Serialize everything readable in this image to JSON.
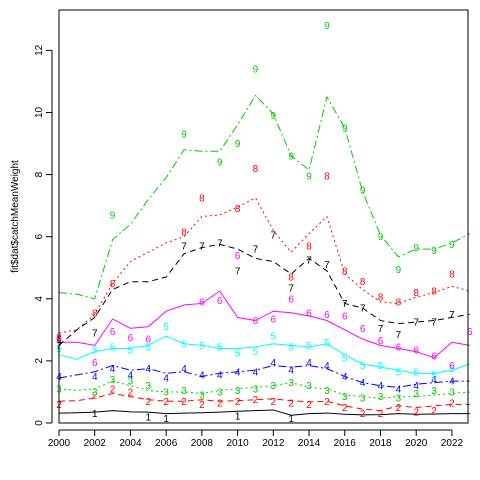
{
  "chart_data": {
    "type": "line",
    "title": "",
    "xlabel": "",
    "ylabel": "fit$dat$catchMeanWeight",
    "xlim": [
      2000,
      2022.9
    ],
    "ylim": [
      0,
      13.3
    ],
    "x_ticks": [
      2000,
      2002,
      2004,
      2006,
      2008,
      2010,
      2012,
      2014,
      2016,
      2018,
      2020,
      2022
    ],
    "y_ticks": [
      0,
      2,
      4,
      6,
      8,
      10,
      12
    ],
    "grid": false,
    "legend": "none",
    "x": [
      2000,
      2001,
      2002,
      2003,
      2004,
      2005,
      2006,
      2007,
      2008,
      2009,
      2010,
      2011,
      2012,
      2013,
      2014,
      2015,
      2016,
      2017,
      2018,
      2019,
      2020,
      2021,
      2022,
      2023
    ],
    "series": [
      {
        "marker": "1",
        "color": "#000000",
        "dash": "",
        "fitted": [
          0.32,
          0.33,
          0.35,
          0.4,
          0.36,
          0.35,
          0.3,
          0.32,
          0.33,
          0.35,
          0.38,
          0.4,
          0.42,
          0.25,
          0.3,
          0.32,
          0.28,
          0.26,
          0.27,
          0.3,
          0.28,
          0.29,
          0.3,
          0.3
        ],
        "obs": [
          {
            "x": 2002,
            "y": 0.3
          },
          {
            "x": 2005,
            "y": 0.2
          },
          {
            "x": 2006,
            "y": 0.15
          },
          {
            "x": 2010,
            "y": 0.22
          },
          {
            "x": 2013,
            "y": 0.15
          }
        ]
      },
      {
        "marker": "2",
        "color": "#ff0000",
        "dash": "6,4",
        "fitted": [
          0.7,
          0.72,
          0.8,
          0.95,
          0.85,
          0.75,
          0.7,
          0.7,
          0.75,
          0.7,
          0.72,
          0.75,
          0.78,
          0.72,
          0.68,
          0.7,
          0.55,
          0.45,
          0.4,
          0.55,
          0.5,
          0.55,
          0.6,
          0.6
        ],
        "obs": [
          {
            "x": 2000,
            "y": 0.6
          },
          {
            "x": 2002,
            "y": 0.9
          },
          {
            "x": 2003,
            "y": 1.1
          },
          {
            "x": 2004,
            "y": 1.0
          },
          {
            "x": 2005,
            "y": 0.7
          },
          {
            "x": 2006,
            "y": 0.7
          },
          {
            "x": 2007,
            "y": 0.7
          },
          {
            "x": 2008,
            "y": 0.6
          },
          {
            "x": 2009,
            "y": 0.65
          },
          {
            "x": 2010,
            "y": 0.7
          },
          {
            "x": 2011,
            "y": 0.75
          },
          {
            "x": 2012,
            "y": 0.7
          },
          {
            "x": 2013,
            "y": 0.65
          },
          {
            "x": 2014,
            "y": 0.6
          },
          {
            "x": 2015,
            "y": 0.7
          },
          {
            "x": 2016,
            "y": 0.5
          },
          {
            "x": 2017,
            "y": 0.3
          },
          {
            "x": 2018,
            "y": 0.3
          },
          {
            "x": 2019,
            "y": 0.5
          },
          {
            "x": 2020,
            "y": 0.35
          },
          {
            "x": 2021,
            "y": 0.4
          },
          {
            "x": 2022,
            "y": 0.65
          }
        ]
      },
      {
        "marker": "3",
        "color": "#00cd00",
        "dash": "2,3",
        "fitted": [
          1.1,
          1.05,
          1.1,
          1.35,
          1.2,
          1.05,
          1.0,
          1.0,
          0.95,
          1.05,
          1.1,
          1.15,
          1.2,
          1.3,
          1.15,
          1.1,
          0.9,
          0.85,
          0.8,
          0.85,
          0.85,
          0.9,
          0.95,
          1.0
        ],
        "obs": [
          {
            "x": 2000,
            "y": 1.1
          },
          {
            "x": 2002,
            "y": 1.0
          },
          {
            "x": 2003,
            "y": 1.4
          },
          {
            "x": 2004,
            "y": 1.35
          },
          {
            "x": 2005,
            "y": 1.2
          },
          {
            "x": 2006,
            "y": 1.0
          },
          {
            "x": 2007,
            "y": 1.05
          },
          {
            "x": 2008,
            "y": 0.9
          },
          {
            "x": 2009,
            "y": 1.0
          },
          {
            "x": 2010,
            "y": 1.05
          },
          {
            "x": 2011,
            "y": 1.1
          },
          {
            "x": 2012,
            "y": 1.2
          },
          {
            "x": 2013,
            "y": 1.3
          },
          {
            "x": 2014,
            "y": 1.2
          },
          {
            "x": 2015,
            "y": 1.05
          },
          {
            "x": 2016,
            "y": 0.85
          },
          {
            "x": 2017,
            "y": 0.8
          },
          {
            "x": 2018,
            "y": 0.85
          },
          {
            "x": 2019,
            "y": 0.8
          },
          {
            "x": 2020,
            "y": 0.95
          },
          {
            "x": 2021,
            "y": 1.05
          },
          {
            "x": 2022,
            "y": 1.0
          }
        ]
      },
      {
        "marker": "4",
        "color": "#0000ff",
        "dash": "8,3,2,3",
        "fitted": [
          1.45,
          1.55,
          1.65,
          1.85,
          1.7,
          1.75,
          1.6,
          1.65,
          1.5,
          1.6,
          1.65,
          1.7,
          1.85,
          1.8,
          1.85,
          1.75,
          1.5,
          1.3,
          1.2,
          1.15,
          1.25,
          1.3,
          1.35,
          1.35
        ],
        "obs": [
          {
            "x": 2000,
            "y": 1.5
          },
          {
            "x": 2002,
            "y": 1.5
          },
          {
            "x": 2003,
            "y": 1.75
          },
          {
            "x": 2004,
            "y": 1.55
          },
          {
            "x": 2005,
            "y": 1.75
          },
          {
            "x": 2006,
            "y": 1.45
          },
          {
            "x": 2007,
            "y": 1.75
          },
          {
            "x": 2008,
            "y": 1.55
          },
          {
            "x": 2009,
            "y": 1.55
          },
          {
            "x": 2010,
            "y": 1.65
          },
          {
            "x": 2011,
            "y": 1.65
          },
          {
            "x": 2012,
            "y": 1.95
          },
          {
            "x": 2013,
            "y": 1.7
          },
          {
            "x": 2014,
            "y": 1.95
          },
          {
            "x": 2015,
            "y": 1.85
          },
          {
            "x": 2016,
            "y": 1.5
          },
          {
            "x": 2017,
            "y": 1.3
          },
          {
            "x": 2018,
            "y": 1.2
          },
          {
            "x": 2019,
            "y": 1.1
          },
          {
            "x": 2020,
            "y": 1.2
          },
          {
            "x": 2021,
            "y": 1.4
          },
          {
            "x": 2022,
            "y": 1.35
          }
        ]
      },
      {
        "marker": "5",
        "color": "#00ffff",
        "dash": "",
        "fitted": [
          2.2,
          2.05,
          2.3,
          2.4,
          2.4,
          2.5,
          2.8,
          2.55,
          2.5,
          2.4,
          2.4,
          2.45,
          2.55,
          2.5,
          2.45,
          2.55,
          2.2,
          1.9,
          1.8,
          1.7,
          1.6,
          1.6,
          1.7,
          1.9
        ],
        "obs": [
          {
            "x": 2000,
            "y": 2.4
          },
          {
            "x": 2002,
            "y": 2.35
          },
          {
            "x": 2003,
            "y": 2.45
          },
          {
            "x": 2004,
            "y": 2.35
          },
          {
            "x": 2005,
            "y": 2.45
          },
          {
            "x": 2006,
            "y": 3.1
          },
          {
            "x": 2007,
            "y": 2.55
          },
          {
            "x": 2008,
            "y": 2.5
          },
          {
            "x": 2009,
            "y": 2.45
          },
          {
            "x": 2010,
            "y": 2.25
          },
          {
            "x": 2011,
            "y": 2.3
          },
          {
            "x": 2012,
            "y": 2.8
          },
          {
            "x": 2013,
            "y": 2.45
          },
          {
            "x": 2014,
            "y": 2.5
          },
          {
            "x": 2015,
            "y": 2.6
          },
          {
            "x": 2016,
            "y": 2.1
          },
          {
            "x": 2017,
            "y": 1.85
          },
          {
            "x": 2018,
            "y": 1.85
          },
          {
            "x": 2019,
            "y": 1.65
          },
          {
            "x": 2020,
            "y": 1.65
          },
          {
            "x": 2021,
            "y": 1.55
          },
          {
            "x": 2022,
            "y": 1.75
          }
        ]
      },
      {
        "marker": "6",
        "color": "#ff00ff",
        "dash": "",
        "fitted": [
          2.6,
          2.6,
          2.5,
          3.35,
          3.05,
          3.1,
          3.6,
          3.8,
          3.85,
          4.25,
          3.4,
          3.3,
          3.6,
          3.55,
          3.45,
          3.3,
          3.0,
          2.7,
          2.5,
          2.4,
          2.3,
          2.1,
          2.6,
          2.5
        ],
        "obs": [
          {
            "x": 2000,
            "y": 2.7
          },
          {
            "x": 2002,
            "y": 1.95
          },
          {
            "x": 2003,
            "y": 2.95
          },
          {
            "x": 2004,
            "y": 2.75
          },
          {
            "x": 2005,
            "y": 2.7
          },
          {
            "x": 2008,
            "y": 3.9
          },
          {
            "x": 2009,
            "y": 3.95
          },
          {
            "x": 2010,
            "y": 5.4
          },
          {
            "x": 2011,
            "y": 3.3
          },
          {
            "x": 2012,
            "y": 3.35
          },
          {
            "x": 2013,
            "y": 4.0
          },
          {
            "x": 2014,
            "y": 3.55
          },
          {
            "x": 2015,
            "y": 3.5
          },
          {
            "x": 2016,
            "y": 3.45
          },
          {
            "x": 2017,
            "y": 3.05
          },
          {
            "x": 2018,
            "y": 2.65
          },
          {
            "x": 2019,
            "y": 2.45
          },
          {
            "x": 2020,
            "y": 2.35
          },
          {
            "x": 2021,
            "y": 2.15
          },
          {
            "x": 2022,
            "y": 1.85
          },
          {
            "x": 2023,
            "y": 2.95
          }
        ]
      },
      {
        "marker": "7",
        "color": "#000000",
        "dash": "6,4",
        "fitted": [
          2.5,
          3.0,
          3.4,
          4.3,
          4.55,
          4.55,
          4.7,
          5.45,
          5.65,
          5.75,
          5.6,
          5.3,
          5.2,
          4.8,
          5.3,
          4.9,
          3.85,
          3.7,
          3.3,
          3.2,
          3.25,
          3.3,
          3.4,
          3.5
        ],
        "obs": [
          {
            "x": 2000,
            "y": 2.5
          },
          {
            "x": 2002,
            "y": 2.9
          },
          {
            "x": 2007,
            "y": 5.7
          },
          {
            "x": 2008,
            "y": 5.7
          },
          {
            "x": 2009,
            "y": 5.8
          },
          {
            "x": 2010,
            "y": 4.9
          },
          {
            "x": 2011,
            "y": 5.6
          },
          {
            "x": 2012,
            "y": 6.05
          },
          {
            "x": 2013,
            "y": 4.35
          },
          {
            "x": 2014,
            "y": 5.25
          },
          {
            "x": 2015,
            "y": 5.1
          },
          {
            "x": 2016,
            "y": 3.85
          },
          {
            "x": 2017,
            "y": 3.7
          },
          {
            "x": 2018,
            "y": 3.05
          },
          {
            "x": 2019,
            "y": 2.85
          },
          {
            "x": 2020,
            "y": 3.25
          },
          {
            "x": 2021,
            "y": 3.25
          },
          {
            "x": 2022,
            "y": 3.5
          }
        ]
      },
      {
        "marker": "8",
        "color": "#ff0000",
        "dash": "2,3",
        "fitted": [
          2.9,
          3.0,
          3.5,
          4.5,
          5.2,
          5.5,
          5.8,
          6.0,
          6.65,
          6.7,
          6.95,
          7.25,
          6.2,
          5.5,
          6.1,
          6.65,
          4.8,
          4.3,
          3.9,
          3.85,
          4.05,
          4.2,
          4.4,
          4.25
        ],
        "obs": [
          {
            "x": 2000,
            "y": 2.75
          },
          {
            "x": 2002,
            "y": 3.55
          },
          {
            "x": 2003,
            "y": 4.5
          },
          {
            "x": 2007,
            "y": 6.15
          },
          {
            "x": 2008,
            "y": 7.25
          },
          {
            "x": 2010,
            "y": 6.9
          },
          {
            "x": 2011,
            "y": 8.2
          },
          {
            "x": 2013,
            "y": 4.7
          },
          {
            "x": 2014,
            "y": 5.7
          },
          {
            "x": 2015,
            "y": 7.95
          },
          {
            "x": 2016,
            "y": 4.9
          },
          {
            "x": 2017,
            "y": 4.55
          },
          {
            "x": 2018,
            "y": 4.05
          },
          {
            "x": 2019,
            "y": 3.9
          },
          {
            "x": 2020,
            "y": 4.2
          },
          {
            "x": 2021,
            "y": 4.25
          },
          {
            "x": 2022,
            "y": 4.8
          }
        ]
      },
      {
        "marker": "9",
        "color": "#00cd00",
        "dash": "8,3,2,3",
        "fitted": [
          4.2,
          4.15,
          4.0,
          5.9,
          6.4,
          7.2,
          7.9,
          8.8,
          8.75,
          8.75,
          9.6,
          10.55,
          9.95,
          8.6,
          8.15,
          10.5,
          9.5,
          7.45,
          6.05,
          5.35,
          5.6,
          5.6,
          5.8,
          6.1
        ],
        "obs": [
          {
            "x": 2003,
            "y": 6.7
          },
          {
            "x": 2007,
            "y": 9.3
          },
          {
            "x": 2009,
            "y": 8.4
          },
          {
            "x": 2010,
            "y": 9.0
          },
          {
            "x": 2011,
            "y": 11.4
          },
          {
            "x": 2012,
            "y": 9.9
          },
          {
            "x": 2013,
            "y": 8.6
          },
          {
            "x": 2014,
            "y": 7.95
          },
          {
            "x": 2015,
            "y": 12.8
          },
          {
            "x": 2016,
            "y": 9.5
          },
          {
            "x": 2017,
            "y": 7.5
          },
          {
            "x": 2018,
            "y": 6.0
          },
          {
            "x": 2019,
            "y": 4.95
          },
          {
            "x": 2020,
            "y": 5.65
          },
          {
            "x": 2021,
            "y": 5.55
          },
          {
            "x": 2022,
            "y": 5.75
          }
        ]
      }
    ]
  }
}
